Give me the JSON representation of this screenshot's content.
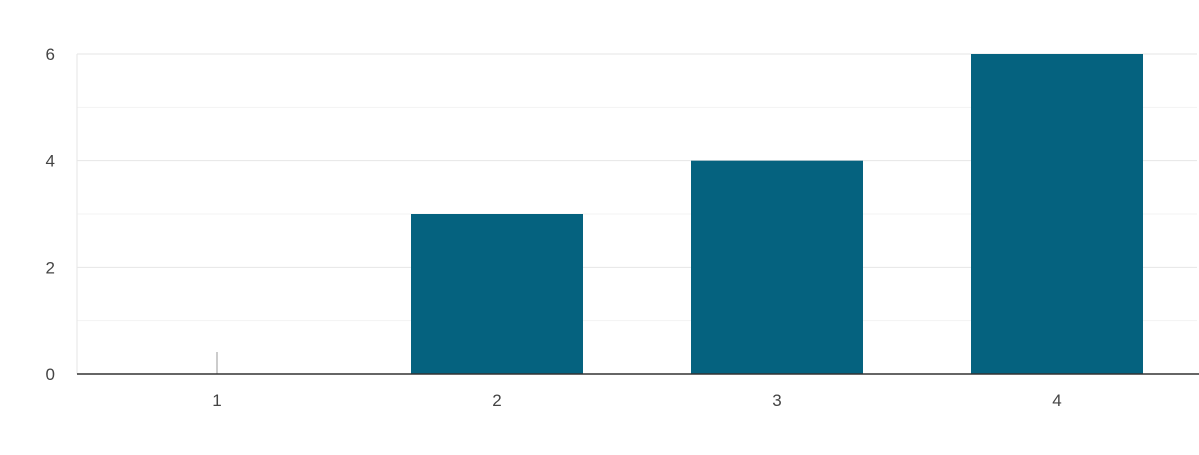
{
  "chart_data": {
    "type": "bar",
    "title": "",
    "xlabel": "",
    "ylabel": "",
    "categories": [
      "1",
      "2",
      "3",
      "4"
    ],
    "values": [
      0,
      3,
      4,
      6
    ],
    "ylim": [
      0,
      6
    ],
    "yticks": [
      "0",
      "2",
      "4",
      "6"
    ],
    "grid": true,
    "legend": "none",
    "bar_color": "#05627f"
  }
}
